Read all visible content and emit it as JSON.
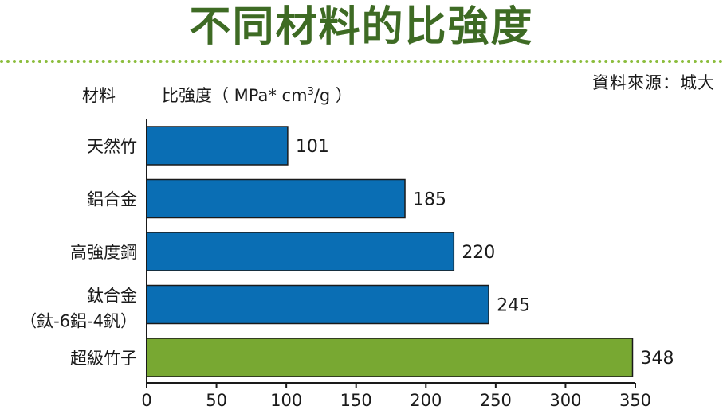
{
  "title": "不同材料的比強度",
  "source": "資料來源：城大",
  "header": {
    "material_label": "材料",
    "measure_label": "比強度（ MPa* cm",
    "measure_superscript": "3",
    "measure_tail": "/g ）"
  },
  "colors": {
    "title": "#3e6b24",
    "dots": "#8bbd3c",
    "bar_default": "#0a6eb4",
    "bar_highlight": "#78a832"
  },
  "chart_data": {
    "type": "bar",
    "orientation": "horizontal",
    "title": "不同材料的比強度",
    "ylabel": "材料",
    "xlabel": "比強度（ MPa* cm3/g ）",
    "categories": [
      [
        "天然竹"
      ],
      [
        "鋁合金"
      ],
      [
        "高強度鋼"
      ],
      [
        "鈦合金",
        "（鈦-6鋁-4釩）"
      ],
      [
        "超級竹子"
      ]
    ],
    "values": [
      101,
      185,
      220,
      245,
      348
    ],
    "value_labels": [
      "101",
      "185",
      "220",
      "245",
      "348"
    ],
    "highlight_index": 4,
    "xlim": [
      0,
      350
    ],
    "xticks": [
      0,
      50,
      100,
      150,
      200,
      250,
      300,
      350
    ],
    "grid": false
  }
}
